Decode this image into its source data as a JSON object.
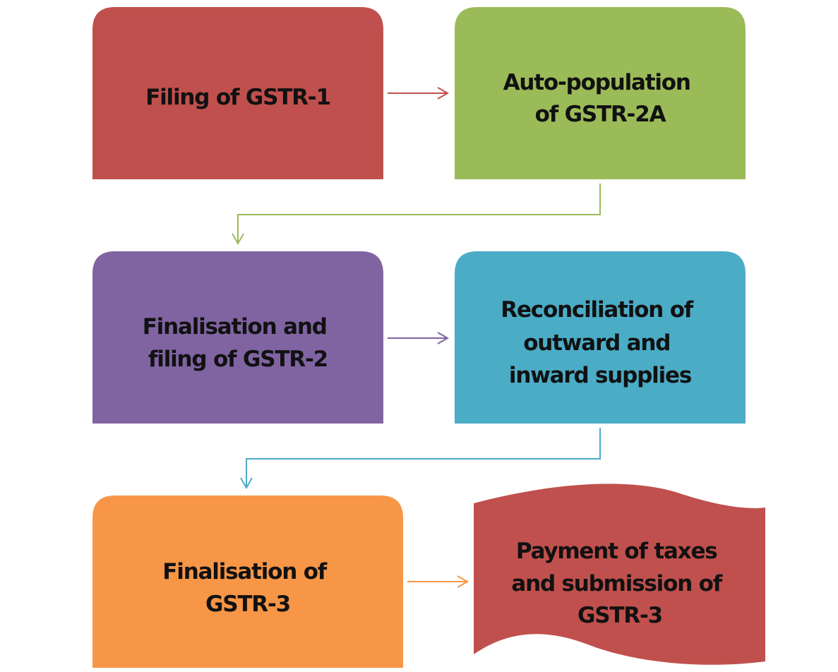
{
  "steps": [
    {
      "id": "step1",
      "lines": [
        "Filing of GSTR-1"
      ],
      "color": "#c0504d"
    },
    {
      "id": "step2",
      "lines": [
        "Auto-population",
        "of GSTR-2A"
      ],
      "color": "#9bbb59"
    },
    {
      "id": "step3",
      "lines": [
        "Finalisation and",
        "filing of GSTR-2"
      ],
      "color": "#8064a2"
    },
    {
      "id": "step4",
      "lines": [
        "Reconciliation of",
        "outward and",
        "inward supplies"
      ],
      "color": "#4bacc6"
    },
    {
      "id": "step5",
      "lines": [
        "Finalisation of",
        "GSTR-3"
      ],
      "color": "#f79646"
    },
    {
      "id": "step6",
      "lines": [
        "Payment of taxes",
        "and submission of",
        "GSTR-3"
      ],
      "color": "#c0504d"
    }
  ],
  "connector_colors": {
    "step1_to_step2": "#c0504d",
    "step2_to_step3": "#9bbb59",
    "step3_to_step4": "#8064a2",
    "step4_to_step5": "#4bacc6",
    "step5_to_step6": "#f79646"
  }
}
